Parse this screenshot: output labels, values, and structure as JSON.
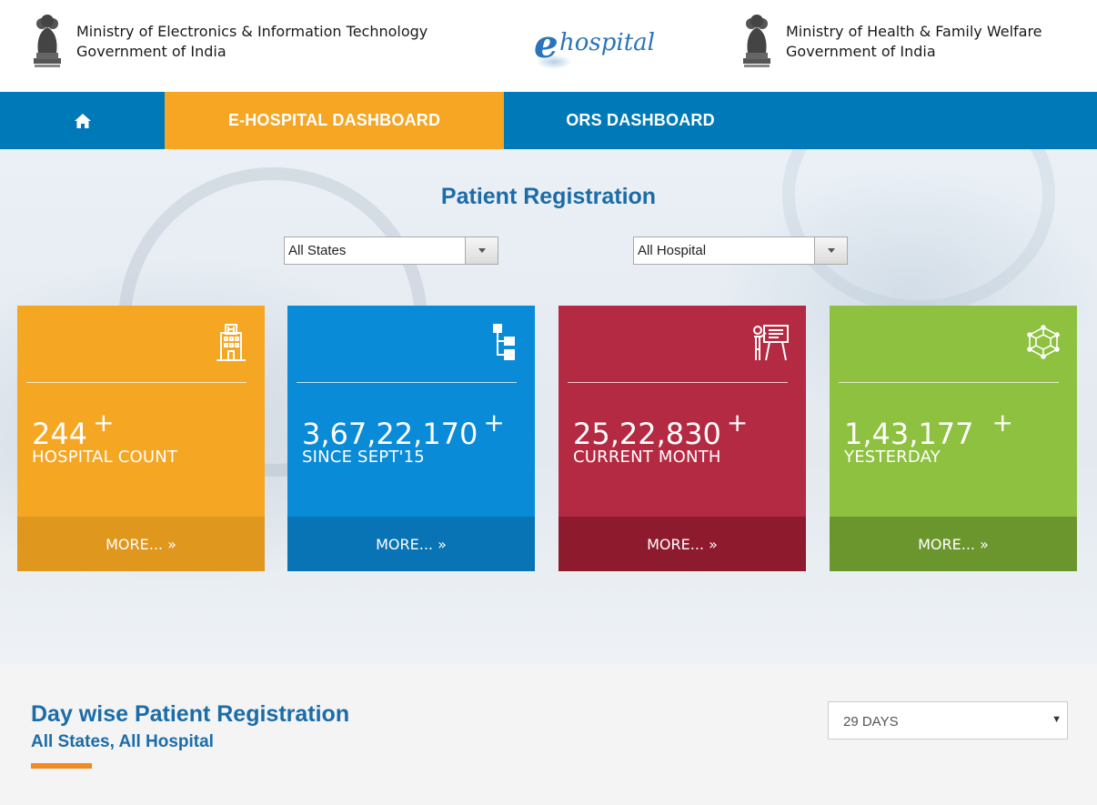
{
  "header": {
    "left_ministry": {
      "line1": "Ministry of Electronics & Information Technology",
      "line2": "Government of India"
    },
    "logo_text": "hospital",
    "logo_letter": "e",
    "right_ministry": {
      "line1": "Ministry of Health & Family Welfare",
      "line2": "Government of India"
    },
    "emblem_icon": "national-emblem-icon"
  },
  "nav": {
    "home_icon": "home-icon",
    "tabs": [
      {
        "label": "E-HOSPITAL DASHBOARD",
        "active": true
      },
      {
        "label": "ORS DASHBOARD",
        "active": false
      }
    ]
  },
  "hero": {
    "title": "Patient Registration",
    "state_select": {
      "value": "All States"
    },
    "hospital_select": {
      "value": "All Hospital"
    }
  },
  "cards": [
    {
      "count": "244",
      "plus": "+",
      "label": "HOSPITAL COUNT",
      "more": "MORE... »",
      "icon": "hospital-building-icon",
      "color": "#f5a623",
      "footer_color": "#e0971d"
    },
    {
      "count": "3,67,22,170",
      "plus": "+",
      "label": "SINCE SEPT'15",
      "more": "MORE... »",
      "icon": "flowchart-icon",
      "color": "#0a8bd8",
      "footer_color": "#0873b5"
    },
    {
      "count": "25,22,830",
      "plus": "+",
      "label": "CURRENT MONTH",
      "more": "MORE... »",
      "icon": "presentation-board-icon",
      "color": "#b52a43",
      "footer_color": "#8e1a2e"
    },
    {
      "count": "1,43,177",
      "plus": "+",
      "label": "YESTERDAY",
      "more": "MORE... »",
      "icon": "cube-network-icon",
      "color": "#8dc13f",
      "footer_color": "#6b962e"
    }
  ],
  "daywise": {
    "title": "Day wise Patient Registration",
    "subtitle": "All States, All Hospital",
    "days_select": {
      "value": "29 DAYS"
    }
  },
  "colors": {
    "nav_bg": "#0079b8",
    "nav_active": "#f6a623",
    "title_blue": "#1b6ca8",
    "accent_orange": "#f08b23"
  }
}
